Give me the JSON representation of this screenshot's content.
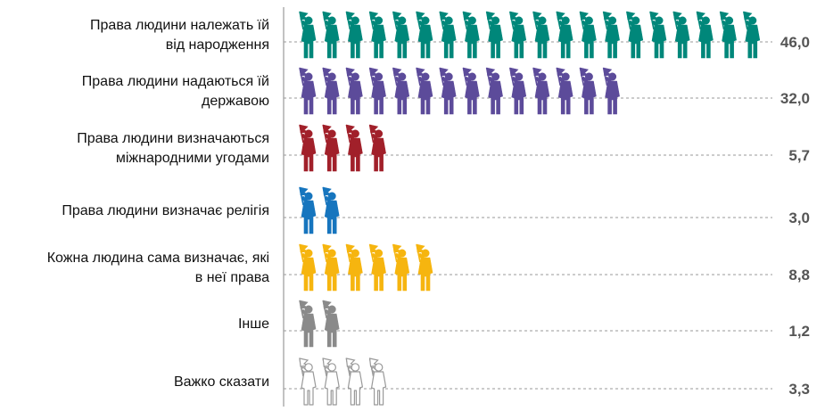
{
  "chart_data": {
    "type": "bar",
    "title": "",
    "xlabel": "",
    "ylabel": "",
    "categories": [
      [
        "Права людини належать їй",
        "від народження"
      ],
      [
        "Права людини надаються їй",
        "державою"
      ],
      [
        "Права людини визначаються",
        "міжнародними угодами"
      ],
      [
        "Права людини визначає релігія"
      ],
      [
        "Кожна людина сама визначає, які",
        "в неї права"
      ],
      [
        "Інше"
      ],
      [
        "Важко сказати"
      ]
    ],
    "values": [
      46.0,
      32.0,
      5.7,
      3.0,
      8.8,
      1.2,
      3.3
    ],
    "value_labels": [
      "46,0",
      "32,0",
      "5,7",
      "3,0",
      "8,8",
      "1,2",
      "3,3"
    ],
    "icon_counts": [
      20,
      14,
      4,
      2,
      6,
      2,
      4
    ],
    "colors": [
      "#00877a",
      "#5c4b9a",
      "#a1202a",
      "#1675be",
      "#f6b50f",
      "#8a8a8a",
      "#ffffff"
    ],
    "icon": "person-with-flag-icon",
    "grid": false,
    "legend": "none"
  }
}
